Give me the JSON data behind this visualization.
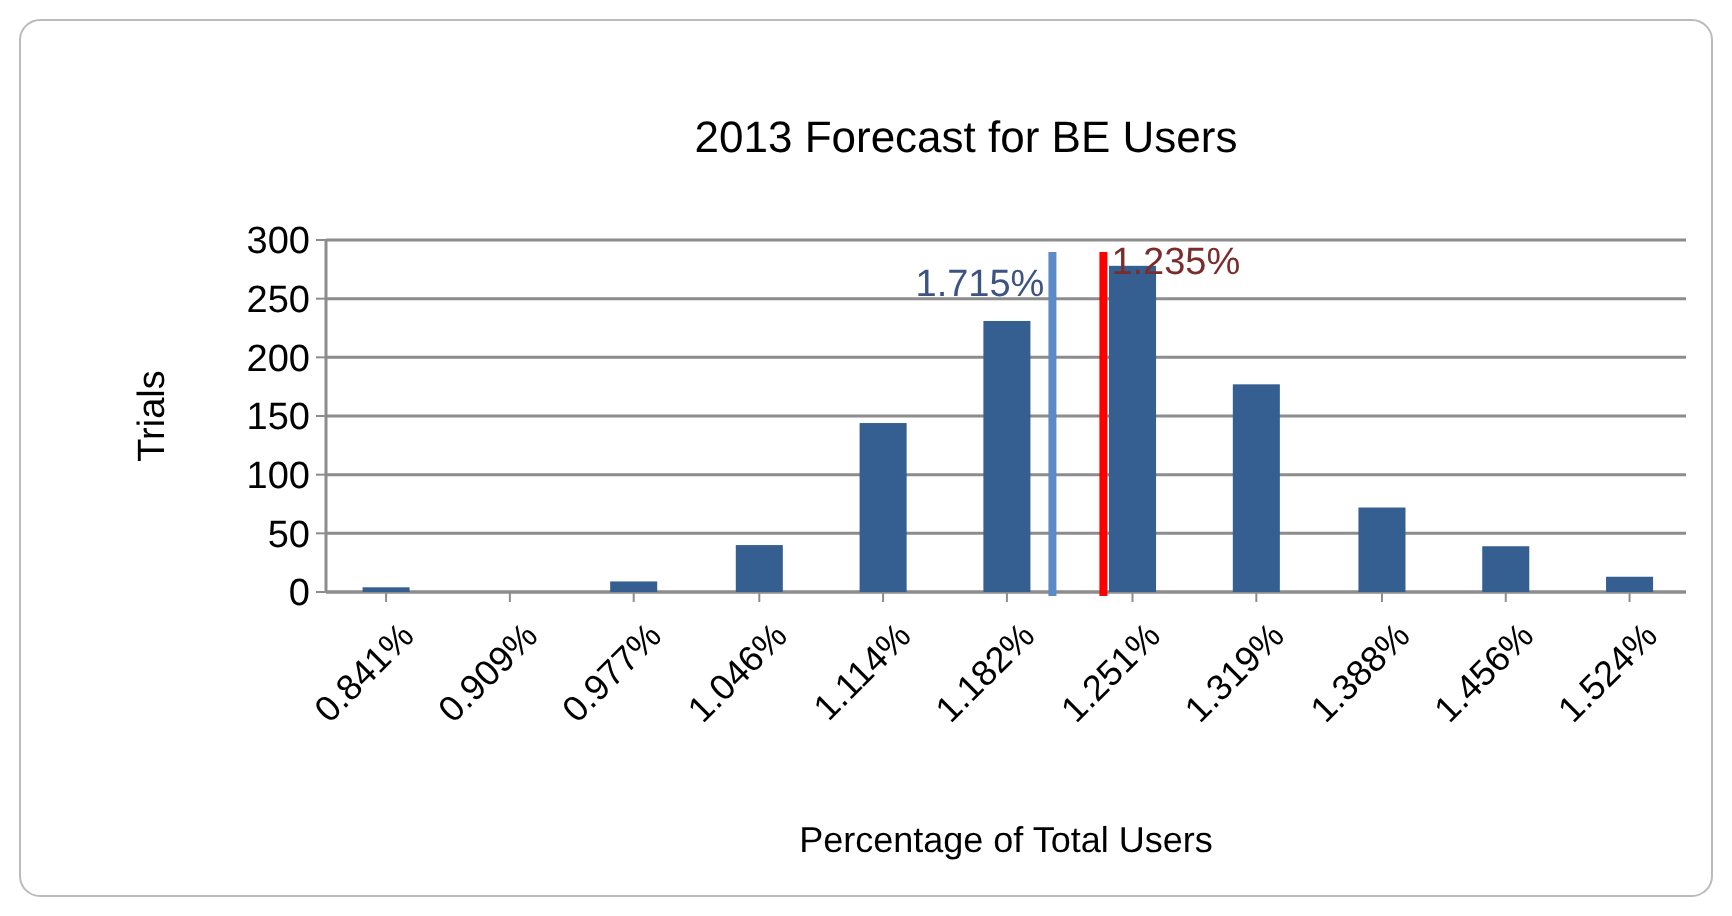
{
  "chart_data": {
    "type": "bar",
    "title": "2013 Forecast for BE Users",
    "xlabel": "Percentage of Total Users",
    "ylabel": "Trials",
    "x": [
      0.841,
      0.909,
      0.977,
      1.046,
      1.114,
      1.182,
      1.251,
      1.319,
      1.388,
      1.456,
      1.524
    ],
    "values": [
      4,
      0,
      9,
      40,
      144,
      231,
      278,
      177,
      72,
      39,
      13
    ],
    "color": "#355f91",
    "xlim": [
      0.808,
      1.555
    ],
    "xticks": [
      {
        "value": 0.841,
        "label": "0.841%"
      },
      {
        "value": 0.909,
        "label": "0.909%"
      },
      {
        "value": 0.977,
        "label": "0.977%"
      },
      {
        "value": 1.046,
        "label": "1.046%"
      },
      {
        "value": 1.114,
        "label": "1.114%"
      },
      {
        "value": 1.182,
        "label": "1.182%"
      },
      {
        "value": 1.251,
        "label": "1.251%"
      },
      {
        "value": 1.319,
        "label": "1.319%"
      },
      {
        "value": 1.388,
        "label": "1.388%"
      },
      {
        "value": 1.456,
        "label": "1.456%"
      },
      {
        "value": 1.524,
        "label": "1.524%"
      }
    ],
    "ylim": [
      0,
      300
    ],
    "yticks": [
      0,
      50,
      100,
      150,
      200,
      250,
      300
    ],
    "grid": "y",
    "annotations": [
      "1.715%"
    ],
    "ref_lines": [
      {
        "axis": "x",
        "value": 1.207,
        "color": "#5b8ac6"
      },
      {
        "axis": "x",
        "value": 1.235,
        "label": "1.235%",
        "color": "#ff0000"
      }
    ]
  }
}
